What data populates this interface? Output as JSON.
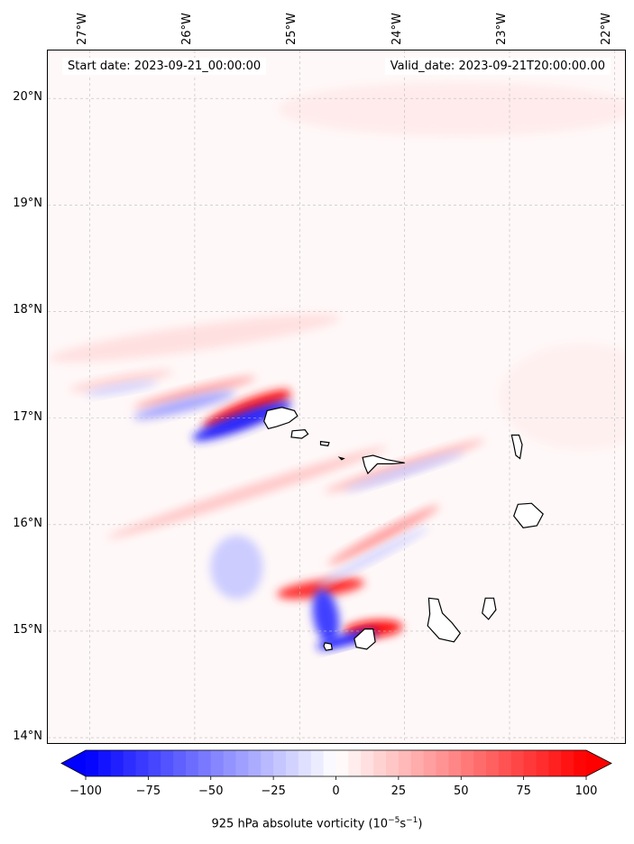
{
  "map": {
    "start_date_text": "Start date: 2023-09-21_00:00:00",
    "valid_date_text": "Valid_date: 2023-09-21T20:00:00.00",
    "extent": {
      "lon_min": -27.4,
      "lon_max": -21.9,
      "lat_min": 13.95,
      "lat_max": 20.45
    },
    "lon_ticks": [
      {
        "value": -27,
        "label": "27°W"
      },
      {
        "value": -26,
        "label": "26°W"
      },
      {
        "value": -25,
        "label": "25°W"
      },
      {
        "value": -24,
        "label": "24°W"
      },
      {
        "value": -23,
        "label": "23°W"
      },
      {
        "value": -22,
        "label": "22°W"
      }
    ],
    "lat_ticks": [
      {
        "value": 20,
        "label": "20°N"
      },
      {
        "value": 19,
        "label": "19°N"
      },
      {
        "value": 18,
        "label": "18°N"
      },
      {
        "value": 17,
        "label": "17°N"
      },
      {
        "value": 16,
        "label": "16°N"
      },
      {
        "value": 15,
        "label": "15°N"
      },
      {
        "value": 14,
        "label": "14°N"
      }
    ],
    "gridlines": true,
    "background_color": "#fff8f8"
  },
  "islands": [
    {
      "name": "santo-antao",
      "pts": [
        [
          -25.31,
          17.07
        ],
        [
          -25.17,
          17.1
        ],
        [
          -25.05,
          17.07
        ],
        [
          -25.02,
          17.02
        ],
        [
          -25.1,
          16.96
        ],
        [
          -25.22,
          16.92
        ],
        [
          -25.3,
          16.9
        ],
        [
          -25.34,
          16.97
        ]
      ]
    },
    {
      "name": "sao-vicente",
      "pts": [
        [
          -25.07,
          16.88
        ],
        [
          -24.95,
          16.89
        ],
        [
          -24.92,
          16.85
        ],
        [
          -24.98,
          16.81
        ],
        [
          -25.08,
          16.82
        ]
      ]
    },
    {
      "name": "santa-luzia",
      "pts": [
        [
          -24.8,
          16.78
        ],
        [
          -24.72,
          16.77
        ],
        [
          -24.73,
          16.74
        ],
        [
          -24.8,
          16.75
        ]
      ]
    },
    {
      "name": "raso",
      "pts": [
        [
          -24.62,
          16.63
        ],
        [
          -24.58,
          16.62
        ],
        [
          -24.6,
          16.61
        ]
      ]
    },
    {
      "name": "sao-nicolau",
      "pts": [
        [
          -24.4,
          16.63
        ],
        [
          -24.3,
          16.65
        ],
        [
          -24.17,
          16.61
        ],
        [
          -24.0,
          16.58
        ],
        [
          -24.12,
          16.57
        ],
        [
          -24.26,
          16.57
        ],
        [
          -24.35,
          16.48
        ],
        [
          -24.38,
          16.55
        ]
      ]
    },
    {
      "name": "sal",
      "pts": [
        [
          -22.98,
          16.84
        ],
        [
          -22.91,
          16.84
        ],
        [
          -22.88,
          16.75
        ],
        [
          -22.9,
          16.62
        ],
        [
          -22.94,
          16.65
        ],
        [
          -22.96,
          16.75
        ]
      ]
    },
    {
      "name": "boa-vista",
      "pts": [
        [
          -22.92,
          16.19
        ],
        [
          -22.79,
          16.2
        ],
        [
          -22.68,
          16.1
        ],
        [
          -22.74,
          15.99
        ],
        [
          -22.87,
          15.97
        ],
        [
          -22.96,
          16.08
        ]
      ]
    },
    {
      "name": "santiago",
      "pts": [
        [
          -23.77,
          15.31
        ],
        [
          -23.68,
          15.3
        ],
        [
          -23.64,
          15.17
        ],
        [
          -23.55,
          15.08
        ],
        [
          -23.47,
          14.98
        ],
        [
          -23.53,
          14.9
        ],
        [
          -23.67,
          14.93
        ],
        [
          -23.78,
          15.05
        ],
        [
          -23.76,
          15.16
        ]
      ]
    },
    {
      "name": "maio",
      "pts": [
        [
          -23.23,
          15.31
        ],
        [
          -23.15,
          15.31
        ],
        [
          -23.13,
          15.2
        ],
        [
          -23.2,
          15.11
        ],
        [
          -23.26,
          15.17
        ]
      ]
    },
    {
      "name": "fogo",
      "pts": [
        [
          -24.38,
          15.02
        ],
        [
          -24.3,
          15.02
        ],
        [
          -24.28,
          14.9
        ],
        [
          -24.36,
          14.83
        ],
        [
          -24.46,
          14.85
        ],
        [
          -24.48,
          14.93
        ]
      ]
    },
    {
      "name": "brava",
      "pts": [
        [
          -24.76,
          14.89
        ],
        [
          -24.7,
          14.88
        ],
        [
          -24.69,
          14.83
        ],
        [
          -24.75,
          14.82
        ],
        [
          -24.77,
          14.86
        ]
      ]
    }
  ],
  "vorticity_features": [
    {
      "lon": -25.5,
      "lat": 17.08,
      "rx": 0.45,
      "ry": 0.09,
      "rot": -22,
      "value": 90
    },
    {
      "lon": -26.0,
      "lat": 17.24,
      "rx": 0.6,
      "ry": 0.05,
      "rot": -14,
      "value": 35
    },
    {
      "lon": -26.7,
      "lat": 17.35,
      "rx": 0.5,
      "ry": 0.05,
      "rot": -10,
      "value": 18
    },
    {
      "lon": -25.55,
      "lat": 16.97,
      "rx": 0.5,
      "ry": 0.08,
      "rot": -20,
      "value": -85
    },
    {
      "lon": -26.1,
      "lat": 17.12,
      "rx": 0.5,
      "ry": 0.06,
      "rot": -14,
      "value": -35
    },
    {
      "lon": -26.7,
      "lat": 17.28,
      "rx": 0.35,
      "ry": 0.04,
      "rot": -10,
      "value": -18
    },
    {
      "lon": -24.8,
      "lat": 15.4,
      "rx": 0.42,
      "ry": 0.08,
      "rot": -8,
      "value": 80
    },
    {
      "lon": -24.3,
      "lat": 15.02,
      "rx": 0.28,
      "ry": 0.08,
      "rot": -5,
      "value": 95
    },
    {
      "lon": -24.75,
      "lat": 15.14,
      "rx": 0.12,
      "ry": 0.26,
      "rot": -10,
      "value": -75
    },
    {
      "lon": -24.55,
      "lat": 14.92,
      "rx": 0.3,
      "ry": 0.05,
      "rot": -15,
      "value": -88
    },
    {
      "lon": -25.6,
      "lat": 15.6,
      "rx": 0.25,
      "ry": 0.3,
      "rot": 0,
      "value": -20
    },
    {
      "lon": -24.0,
      "lat": 16.55,
      "rx": 0.8,
      "ry": 0.05,
      "rot": -18,
      "value": 28
    },
    {
      "lon": -24.0,
      "lat": 16.5,
      "rx": 0.6,
      "ry": 0.04,
      "rot": -18,
      "value": -22
    },
    {
      "lon": -24.2,
      "lat": 15.9,
      "rx": 0.6,
      "ry": 0.05,
      "rot": -28,
      "value": 40
    },
    {
      "lon": -24.3,
      "lat": 15.7,
      "rx": 0.6,
      "ry": 0.04,
      "rot": -28,
      "value": -18
    },
    {
      "lon": -25.5,
      "lat": 16.3,
      "rx": 1.4,
      "ry": 0.06,
      "rot": -18,
      "value": 22
    },
    {
      "lon": -26.0,
      "lat": 17.75,
      "rx": 1.4,
      "ry": 0.12,
      "rot": -8,
      "value": 12
    },
    {
      "lon": -23.5,
      "lat": 19.9,
      "rx": 1.7,
      "ry": 0.25,
      "rot": 0,
      "value": 8
    },
    {
      "lon": -22.3,
      "lat": 17.2,
      "rx": 0.8,
      "ry": 0.5,
      "rot": 0,
      "value": 6
    }
  ],
  "colorbar": {
    "vmin": -100,
    "vmax": 100,
    "levels": 40,
    "low_color": "#0000ff",
    "mid_color": "#ffffff",
    "high_color": "#ff0000",
    "ticks": [
      {
        "value": -100,
        "label": "−100"
      },
      {
        "value": -75,
        "label": "−75"
      },
      {
        "value": -50,
        "label": "−50"
      },
      {
        "value": -25,
        "label": "−25"
      },
      {
        "value": 0,
        "label": "0"
      },
      {
        "value": 25,
        "label": "25"
      },
      {
        "value": 50,
        "label": "50"
      },
      {
        "value": 75,
        "label": "75"
      },
      {
        "value": 100,
        "label": "100"
      }
    ],
    "label_main": "925 hPa absolute vorticity (10",
    "label_exp1": "−5",
    "label_mid": "s",
    "label_exp2": "−1",
    "label_end": ")"
  }
}
